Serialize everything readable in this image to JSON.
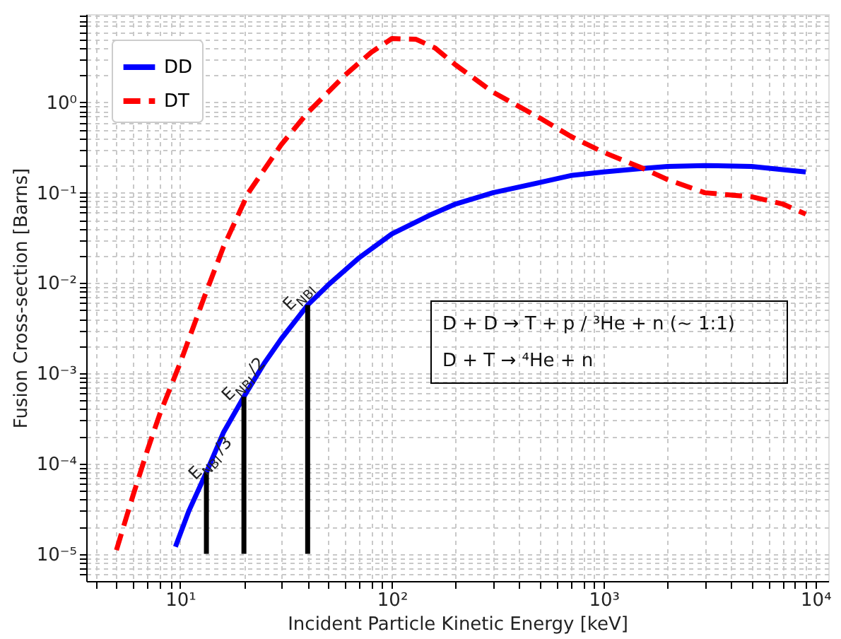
{
  "chart_data": {
    "type": "line",
    "xlabel": "Incident Particle Kinetic Energy [keV]",
    "ylabel": "Fusion Cross-section [Barns]",
    "log": "xy",
    "grid": true,
    "legend": "top left",
    "marker": "none",
    "xlim": [
      3.6,
      11500
    ],
    "ylim": [
      5e-06,
      9.5
    ],
    "xticks": [
      {
        "value": 10,
        "label": "10¹"
      },
      {
        "value": 100,
        "label": "10²"
      },
      {
        "value": 1000,
        "label": "10³"
      },
      {
        "value": 10000,
        "label": "10⁴"
      }
    ],
    "yticks": [
      {
        "value": 1e-05,
        "label": "10⁻⁵"
      },
      {
        "value": 0.0001,
        "label": "10⁻⁴"
      },
      {
        "value": 0.001,
        "label": "10⁻³"
      },
      {
        "value": 0.01,
        "label": "10⁻²"
      },
      {
        "value": 0.1,
        "label": "10⁻¹"
      },
      {
        "value": 1,
        "label": "10⁰"
      }
    ],
    "series": [
      {
        "name": "DD",
        "color": "#0000ff",
        "line_style": "solid",
        "x": [
          9.5,
          11,
          13.3,
          16,
          20,
          25,
          30,
          40,
          50,
          70,
          100,
          150,
          200,
          300,
          500,
          700,
          1000,
          1500,
          2000,
          3000,
          5000,
          7000,
          9000
        ],
        "values": [
          1.2e-05,
          3e-05,
          8e-05,
          0.00022,
          0.00055,
          0.0013,
          0.0024,
          0.0057,
          0.0095,
          0.019,
          0.035,
          0.056,
          0.075,
          0.1,
          0.13,
          0.155,
          0.17,
          0.185,
          0.195,
          0.2,
          0.195,
          0.18,
          0.17
        ]
      },
      {
        "name": "DT",
        "color": "#ff0000",
        "line_style": "dashed",
        "x": [
          5,
          6,
          7,
          8,
          10,
          13,
          16,
          21,
          30,
          40,
          50,
          60,
          80,
          100,
          130,
          160,
          200,
          300,
          500,
          700,
          1000,
          1500,
          2000,
          3000,
          5000,
          7000,
          9000
        ],
        "values": [
          1.1e-05,
          4.5e-05,
          0.00014,
          0.00035,
          0.0013,
          0.007,
          0.025,
          0.1,
          0.34,
          0.77,
          1.3,
          2,
          3.6,
          5.1,
          5,
          4,
          2.6,
          1.3,
          0.67,
          0.42,
          0.28,
          0.19,
          0.14,
          0.1,
          0.09,
          0.075,
          0.058
        ]
      },
      {
        "color": "#000000",
        "line_style": "solid",
        "x": [
          13.3,
          13.3
        ],
        "values": [
          1e-05,
          8e-05
        ]
      },
      {
        "color": "#000000",
        "line_style": "solid",
        "x": [
          20,
          20
        ],
        "values": [
          1e-05,
          0.00055
        ]
      },
      {
        "color": "#000000",
        "line_style": "solid",
        "x": [
          40,
          40
        ],
        "values": [
          1e-05,
          0.0057
        ]
      }
    ],
    "annotations": [
      {
        "text": "E$_{NBI}$/3",
        "x": 12.2,
        "y": 6e-05
      },
      {
        "text": "E$_{NBI}$/2",
        "x": 17.5,
        "y": 0.00045
      },
      {
        "text": "E$_{NBI}$",
        "x": 34,
        "y": 0.0045
      },
      "D + D → T + p / ³He + n (~ 1:1)",
      "D + T → ⁴He + n"
    ]
  }
}
